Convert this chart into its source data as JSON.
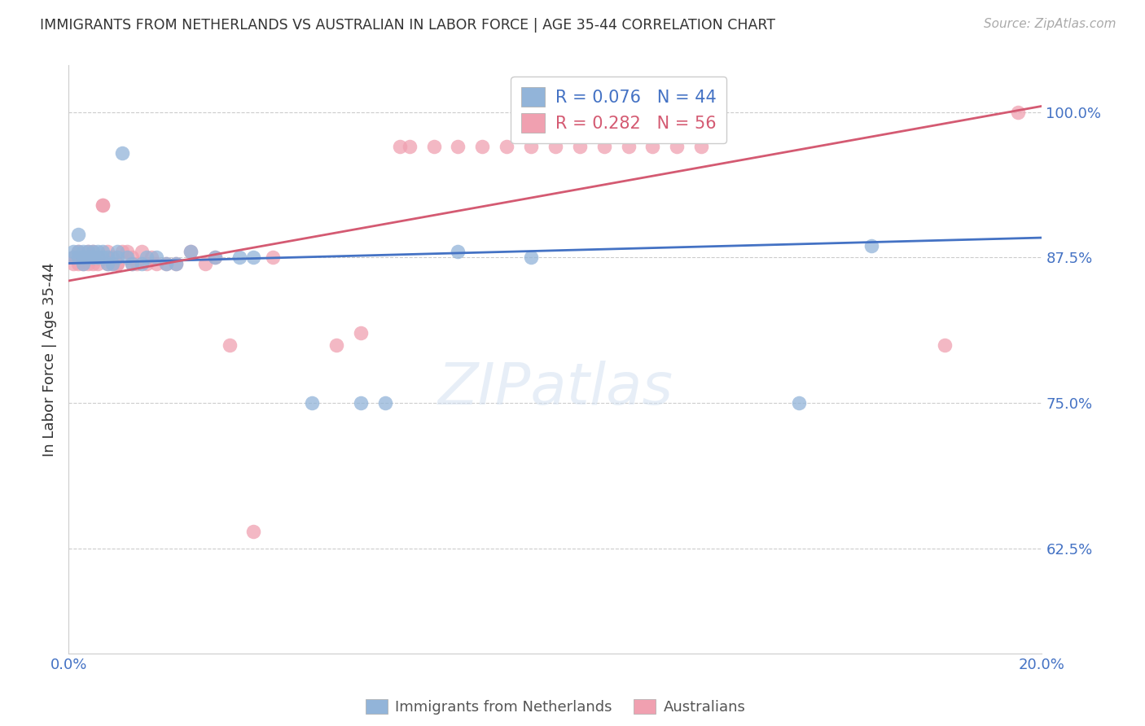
{
  "title": "IMMIGRANTS FROM NETHERLANDS VS AUSTRALIAN IN LABOR FORCE | AGE 35-44 CORRELATION CHART",
  "source_text": "Source: ZipAtlas.com",
  "ylabel": "In Labor Force | Age 35-44",
  "x_min": 0.0,
  "x_max": 0.2,
  "y_min": 0.535,
  "y_max": 1.04,
  "y_ticks": [
    0.625,
    0.75,
    0.875,
    1.0
  ],
  "y_tick_labels": [
    "62.5%",
    "75.0%",
    "87.5%",
    "100.0%"
  ],
  "x_ticks": [
    0.0,
    0.04,
    0.08,
    0.12,
    0.16,
    0.2
  ],
  "x_tick_labels": [
    "0.0%",
    "",
    "",
    "",
    "",
    "20.0%"
  ],
  "legend_labels": [
    "Immigrants from Netherlands",
    "Australians"
  ],
  "blue_R": 0.076,
  "blue_N": 44,
  "pink_R": 0.282,
  "pink_N": 56,
  "blue_color": "#92b4d9",
  "pink_color": "#f0a0b0",
  "blue_line_color": "#4472c4",
  "pink_line_color": "#d45a72",
  "background_color": "#ffffff",
  "grid_color": "#cccccc",
  "title_color": "#333333",
  "axis_label_color": "#4472c4",
  "blue_scatter_x": [
    0.001,
    0.001,
    0.002,
    0.002,
    0.002,
    0.003,
    0.003,
    0.003,
    0.003,
    0.004,
    0.004,
    0.004,
    0.005,
    0.005,
    0.005,
    0.006,
    0.006,
    0.006,
    0.007,
    0.007,
    0.008,
    0.008,
    0.009,
    0.01,
    0.01,
    0.011,
    0.012,
    0.013,
    0.015,
    0.016,
    0.018,
    0.02,
    0.022,
    0.025,
    0.03,
    0.035,
    0.038,
    0.05,
    0.06,
    0.065,
    0.08,
    0.095,
    0.15,
    0.165
  ],
  "blue_scatter_y": [
    0.875,
    0.88,
    0.875,
    0.88,
    0.895,
    0.875,
    0.88,
    0.875,
    0.87,
    0.875,
    0.875,
    0.88,
    0.875,
    0.88,
    0.875,
    0.88,
    0.875,
    0.875,
    0.875,
    0.88,
    0.87,
    0.875,
    0.87,
    0.875,
    0.88,
    0.965,
    0.875,
    0.87,
    0.87,
    0.875,
    0.875,
    0.87,
    0.87,
    0.88,
    0.875,
    0.875,
    0.875,
    0.75,
    0.75,
    0.75,
    0.88,
    0.875,
    0.75,
    0.885
  ],
  "pink_scatter_x": [
    0.001,
    0.001,
    0.002,
    0.002,
    0.003,
    0.003,
    0.004,
    0.004,
    0.005,
    0.005,
    0.005,
    0.006,
    0.006,
    0.007,
    0.007,
    0.008,
    0.008,
    0.009,
    0.009,
    0.01,
    0.01,
    0.011,
    0.012,
    0.013,
    0.013,
    0.014,
    0.015,
    0.016,
    0.017,
    0.018,
    0.02,
    0.022,
    0.025,
    0.028,
    0.03,
    0.033,
    0.038,
    0.042,
    0.055,
    0.06,
    0.068,
    0.07,
    0.075,
    0.08,
    0.085,
    0.09,
    0.095,
    0.1,
    0.105,
    0.11,
    0.115,
    0.12,
    0.125,
    0.13,
    0.18,
    0.195
  ],
  "pink_scatter_y": [
    0.875,
    0.87,
    0.88,
    0.87,
    0.875,
    0.87,
    0.88,
    0.87,
    0.875,
    0.87,
    0.88,
    0.875,
    0.87,
    0.92,
    0.92,
    0.87,
    0.88,
    0.875,
    0.87,
    0.87,
    0.87,
    0.88,
    0.88,
    0.87,
    0.875,
    0.87,
    0.88,
    0.87,
    0.875,
    0.87,
    0.87,
    0.87,
    0.88,
    0.87,
    0.875,
    0.8,
    0.64,
    0.875,
    0.8,
    0.81,
    0.97,
    0.97,
    0.97,
    0.97,
    0.97,
    0.97,
    0.97,
    0.97,
    0.97,
    0.97,
    0.97,
    0.97,
    0.97,
    0.97,
    0.8,
    1.0
  ]
}
